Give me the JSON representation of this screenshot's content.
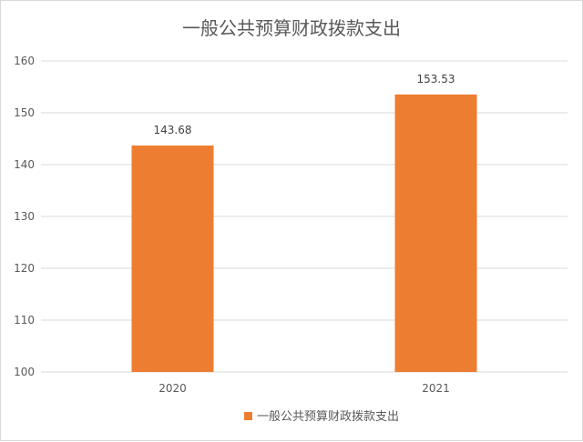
{
  "chart_data": {
    "type": "bar",
    "title": "一般公共预算财政拨款支出",
    "categories": [
      "2020",
      "2021"
    ],
    "series": [
      {
        "name": "一般公共预算财政拨款支出",
        "values": [
          143.68,
          153.53
        ],
        "data_labels": [
          "143.68",
          "153.53"
        ],
        "color": "#ED7D31"
      }
    ],
    "ylim": [
      100,
      160
    ],
    "yticks": [
      "100",
      "110",
      "120",
      "130",
      "140",
      "150",
      "160"
    ],
    "grid": true,
    "legend_position": "bottom",
    "xlabel": "",
    "ylabel": ""
  }
}
